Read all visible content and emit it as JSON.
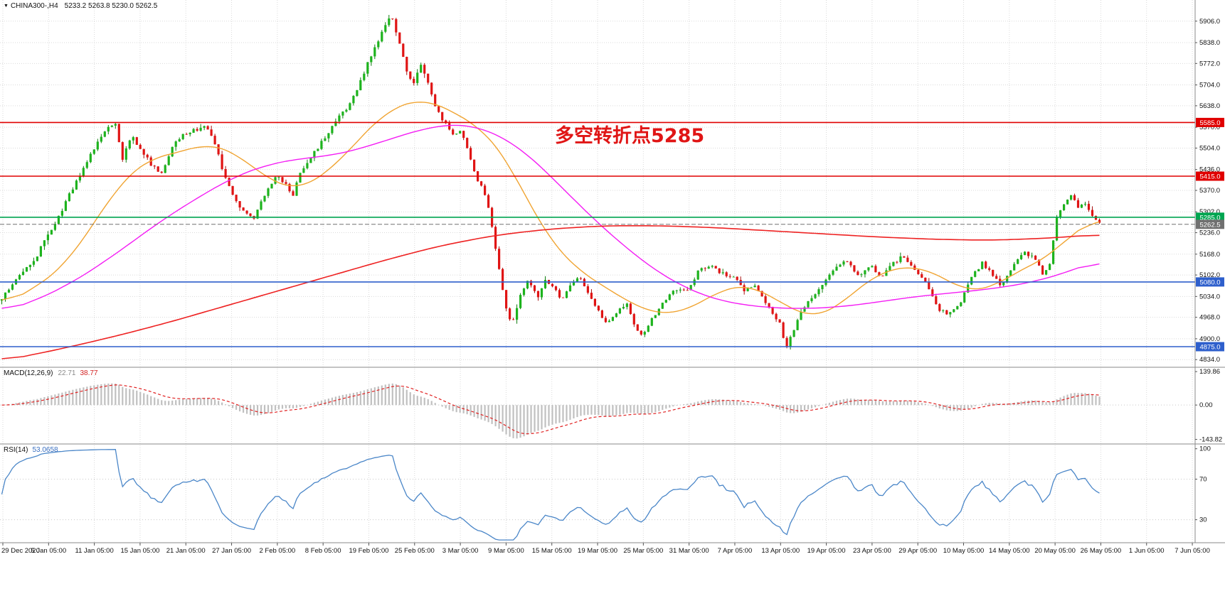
{
  "window": {
    "marker": "▼",
    "symbol": "CHINA300-,H4",
    "ohlc": "5233.2 5263.8 5230.0 5262.5"
  },
  "annotation": {
    "text": "多空转折点5285",
    "color": "#e01515"
  },
  "colors": {
    "grid": "#dadada",
    "separator": "#8a8a8a",
    "axis_text": "#111111",
    "background": "#ffffff"
  },
  "chart_data": {
    "type": "candlestick",
    "symbol": "CHINA300-",
    "timeframe": "H4",
    "last_bar": {
      "open": 5233.2,
      "high": 5263.8,
      "low": 5230.0,
      "close": 5262.5
    },
    "bars": 310,
    "up_color": "#1db31d",
    "down_color": "#e01414",
    "up_wick": "#0f7d0f",
    "down_wick": "#a50d0d",
    "price_axis": {
      "ticks": [
        "5906.0",
        "5838.0",
        "5772.0",
        "5704.0",
        "5638.0",
        "5570.0",
        "5504.0",
        "5436.0",
        "5370.0",
        "5302.0",
        "5236.0",
        "5168.0",
        "5102.0",
        "5034.0",
        "4968.0",
        "4900.0",
        "4834.0"
      ],
      "range_top": 5973,
      "range_bottom": 4812
    },
    "hlines": [
      {
        "value": 5585.0,
        "label": "5585.0",
        "color": "#e00000",
        "style": "solid"
      },
      {
        "value": 5415.0,
        "label": "5415.0",
        "color": "#e00000",
        "style": "solid"
      },
      {
        "value": 5285.0,
        "label": "5285.0",
        "color": "#00a550",
        "style": "solid"
      },
      {
        "value": 5262.5,
        "label": "5262.5",
        "color": "#707070",
        "style": "dashed",
        "role": "current-price"
      },
      {
        "value": 5080.0,
        "label": "5080.0",
        "color": "#2e5fcc",
        "style": "solid"
      },
      {
        "value": 4875.0,
        "label": "4875.0",
        "color": "#2e5fcc",
        "style": "solid"
      }
    ],
    "close_waypoints": [
      [
        0,
        5030
      ],
      [
        0.008,
        5065
      ],
      [
        0.018,
        5110
      ],
      [
        0.03,
        5150
      ],
      [
        0.042,
        5230
      ],
      [
        0.055,
        5310
      ],
      [
        0.068,
        5400
      ],
      [
        0.08,
        5480
      ],
      [
        0.094,
        5555
      ],
      [
        0.103,
        5585
      ],
      [
        0.11,
        5470
      ],
      [
        0.118,
        5545
      ],
      [
        0.127,
        5500
      ],
      [
        0.136,
        5450
      ],
      [
        0.145,
        5425
      ],
      [
        0.155,
        5505
      ],
      [
        0.165,
        5545
      ],
      [
        0.175,
        5560
      ],
      [
        0.187,
        5570
      ],
      [
        0.196,
        5495
      ],
      [
        0.205,
        5395
      ],
      [
        0.218,
        5310
      ],
      [
        0.229,
        5275
      ],
      [
        0.24,
        5360
      ],
      [
        0.25,
        5420
      ],
      [
        0.258,
        5390
      ],
      [
        0.266,
        5355
      ],
      [
        0.271,
        5425
      ],
      [
        0.28,
        5470
      ],
      [
        0.293,
        5530
      ],
      [
        0.303,
        5585
      ],
      [
        0.313,
        5625
      ],
      [
        0.323,
        5685
      ],
      [
        0.335,
        5785
      ],
      [
        0.345,
        5860
      ],
      [
        0.355,
        5925
      ],
      [
        0.362,
        5840
      ],
      [
        0.368,
        5755
      ],
      [
        0.375,
        5700
      ],
      [
        0.381,
        5770
      ],
      [
        0.388,
        5720
      ],
      [
        0.395,
        5640
      ],
      [
        0.403,
        5585
      ],
      [
        0.411,
        5545
      ],
      [
        0.418,
        5560
      ],
      [
        0.426,
        5480
      ],
      [
        0.434,
        5400
      ],
      [
        0.442,
        5345
      ],
      [
        0.45,
        5180
      ],
      [
        0.459,
        5000
      ],
      [
        0.465,
        4945
      ],
      [
        0.472,
        5040
      ],
      [
        0.48,
        5090
      ],
      [
        0.488,
        5030
      ],
      [
        0.495,
        5085
      ],
      [
        0.501,
        5075
      ],
      [
        0.509,
        5020
      ],
      [
        0.517,
        5070
      ],
      [
        0.526,
        5100
      ],
      [
        0.535,
        5040
      ],
      [
        0.543,
        4990
      ],
      [
        0.551,
        4950
      ],
      [
        0.56,
        4985
      ],
      [
        0.57,
        5010
      ],
      [
        0.578,
        4930
      ],
      [
        0.584,
        4905
      ],
      [
        0.592,
        4960
      ],
      [
        0.601,
        5010
      ],
      [
        0.61,
        5045
      ],
      [
        0.625,
        5055
      ],
      [
        0.635,
        5115
      ],
      [
        0.645,
        5135
      ],
      [
        0.655,
        5110
      ],
      [
        0.667,
        5095
      ],
      [
        0.676,
        5050
      ],
      [
        0.685,
        5075
      ],
      [
        0.695,
        5020
      ],
      [
        0.703,
        4975
      ],
      [
        0.709,
        4950
      ],
      [
        0.714,
        4870
      ],
      [
        0.721,
        4925
      ],
      [
        0.729,
        4990
      ],
      [
        0.738,
        5035
      ],
      [
        0.75,
        5080
      ],
      [
        0.76,
        5125
      ],
      [
        0.77,
        5150
      ],
      [
        0.78,
        5100
      ],
      [
        0.792,
        5135
      ],
      [
        0.801,
        5090
      ],
      [
        0.81,
        5135
      ],
      [
        0.82,
        5160
      ],
      [
        0.833,
        5120
      ],
      [
        0.842,
        5075
      ],
      [
        0.852,
        5000
      ],
      [
        0.862,
        4975
      ],
      [
        0.875,
        5025
      ],
      [
        0.884,
        5100
      ],
      [
        0.893,
        5140
      ],
      [
        0.902,
        5105
      ],
      [
        0.91,
        5070
      ],
      [
        0.917,
        5105
      ],
      [
        0.925,
        5150
      ],
      [
        0.933,
        5175
      ],
      [
        0.941,
        5150
      ],
      [
        0.949,
        5105
      ],
      [
        0.955,
        5140
      ],
      [
        0.961,
        5290
      ],
      [
        0.968,
        5330
      ],
      [
        0.975,
        5355
      ],
      [
        0.981,
        5310
      ],
      [
        0.987,
        5330
      ],
      [
        0.993,
        5285
      ],
      [
        1,
        5262
      ]
    ],
    "moving_averages": [
      {
        "name": "ma-fast",
        "color": "#f0a432",
        "points": [
          [
            0,
            5005
          ],
          [
            0.03,
            5060
          ],
          [
            0.06,
            5140
          ],
          [
            0.09,
            5300
          ],
          [
            0.11,
            5400
          ],
          [
            0.13,
            5465
          ],
          [
            0.16,
            5490
          ],
          [
            0.19,
            5520
          ],
          [
            0.21,
            5495
          ],
          [
            0.23,
            5440
          ],
          [
            0.25,
            5390
          ],
          [
            0.27,
            5370
          ],
          [
            0.29,
            5410
          ],
          [
            0.31,
            5470
          ],
          [
            0.33,
            5550
          ],
          [
            0.35,
            5620
          ],
          [
            0.37,
            5650
          ],
          [
            0.385,
            5660
          ],
          [
            0.4,
            5640
          ],
          [
            0.42,
            5600
          ],
          [
            0.44,
            5560
          ],
          [
            0.46,
            5470
          ],
          [
            0.48,
            5330
          ],
          [
            0.5,
            5210
          ],
          [
            0.52,
            5130
          ],
          [
            0.54,
            5085
          ],
          [
            0.56,
            5040
          ],
          [
            0.58,
            5000
          ],
          [
            0.6,
            4975
          ],
          [
            0.62,
            4985
          ],
          [
            0.64,
            5020
          ],
          [
            0.66,
            5065
          ],
          [
            0.68,
            5070
          ],
          [
            0.7,
            5040
          ],
          [
            0.72,
            4990
          ],
          [
            0.74,
            4965
          ],
          [
            0.76,
            4995
          ],
          [
            0.78,
            5060
          ],
          [
            0.8,
            5110
          ],
          [
            0.82,
            5130
          ],
          [
            0.84,
            5125
          ],
          [
            0.86,
            5090
          ],
          [
            0.88,
            5045
          ],
          [
            0.9,
            5060
          ],
          [
            0.92,
            5100
          ],
          [
            0.94,
            5140
          ],
          [
            0.96,
            5170
          ],
          [
            0.98,
            5255
          ],
          [
            1,
            5285
          ]
        ]
      },
      {
        "name": "ma-medium",
        "color": "#f41df4",
        "points": [
          [
            0,
            4985
          ],
          [
            0.03,
            5020
          ],
          [
            0.06,
            5070
          ],
          [
            0.09,
            5135
          ],
          [
            0.12,
            5210
          ],
          [
            0.15,
            5285
          ],
          [
            0.18,
            5350
          ],
          [
            0.21,
            5410
          ],
          [
            0.24,
            5450
          ],
          [
            0.27,
            5470
          ],
          [
            0.3,
            5480
          ],
          [
            0.33,
            5505
          ],
          [
            0.36,
            5540
          ],
          [
            0.39,
            5570
          ],
          [
            0.41,
            5580
          ],
          [
            0.43,
            5575
          ],
          [
            0.45,
            5550
          ],
          [
            0.47,
            5510
          ],
          [
            0.49,
            5450
          ],
          [
            0.51,
            5380
          ],
          [
            0.53,
            5310
          ],
          [
            0.55,
            5245
          ],
          [
            0.57,
            5185
          ],
          [
            0.59,
            5130
          ],
          [
            0.61,
            5085
          ],
          [
            0.63,
            5050
          ],
          [
            0.65,
            5025
          ],
          [
            0.67,
            5010
          ],
          [
            0.7,
            4998
          ],
          [
            0.73,
            4995
          ],
          [
            0.76,
            5000
          ],
          [
            0.79,
            5012
          ],
          [
            0.82,
            5028
          ],
          [
            0.85,
            5040
          ],
          [
            0.88,
            5050
          ],
          [
            0.91,
            5062
          ],
          [
            0.94,
            5080
          ],
          [
            0.97,
            5110
          ],
          [
            1,
            5150
          ]
        ]
      },
      {
        "name": "ma-slow",
        "color": "#ee2222",
        "points": [
          [
            0,
            4830
          ],
          [
            0.05,
            4865
          ],
          [
            0.1,
            4905
          ],
          [
            0.15,
            4950
          ],
          [
            0.2,
            5000
          ],
          [
            0.25,
            5050
          ],
          [
            0.3,
            5100
          ],
          [
            0.35,
            5150
          ],
          [
            0.4,
            5195
          ],
          [
            0.45,
            5228
          ],
          [
            0.5,
            5248
          ],
          [
            0.55,
            5258
          ],
          [
            0.6,
            5258
          ],
          [
            0.65,
            5252
          ],
          [
            0.7,
            5242
          ],
          [
            0.75,
            5232
          ],
          [
            0.8,
            5222
          ],
          [
            0.85,
            5215
          ],
          [
            0.9,
            5212
          ],
          [
            0.95,
            5218
          ],
          [
            1,
            5230
          ]
        ]
      }
    ],
    "macd": {
      "label": "MACD(12,26,9)",
      "value": "22.71",
      "signal": "38.77",
      "fast": 12,
      "slow": 26,
      "smooth": 9,
      "axis_ticks": [
        "139.86",
        "0.00",
        "-143.82"
      ],
      "range": [
        -160,
        155
      ],
      "histogram_color": "#c0c0c0",
      "signal_color": "#e02020"
    },
    "rsi": {
      "label": "RSI(14)",
      "value": "53.0658",
      "period": 14,
      "axis_ticks": [
        "100",
        "70",
        "30"
      ],
      "levels": [
        70,
        30
      ],
      "range": [
        8,
        104
      ],
      "line_color": "#4a86c8"
    },
    "time_axis": {
      "labels": [
        "29 Dec 2020",
        "5 Jan 05:00",
        "11 Jan 05:00",
        "15 Jan 05:00",
        "21 Jan 05:00",
        "27 Jan 05:00",
        "2 Feb 05:00",
        "8 Feb 05:00",
        "19 Feb 05:00",
        "25 Feb 05:00",
        "3 Mar 05:00",
        "9 Mar 05:00",
        "15 Mar 05:00",
        "19 Mar 05:00",
        "25 Mar 05:00",
        "31 Mar 05:00",
        "7 Apr 05:00",
        "13 Apr 05:00",
        "19 Apr 05:00",
        "23 Apr 05:00",
        "29 Apr 05:00",
        "10 May 05:00",
        "14 May 05:00",
        "20 May 05:00",
        "26 May 05:00",
        "1 Jun 05:00",
        "7 Jun 05:00"
      ]
    }
  }
}
